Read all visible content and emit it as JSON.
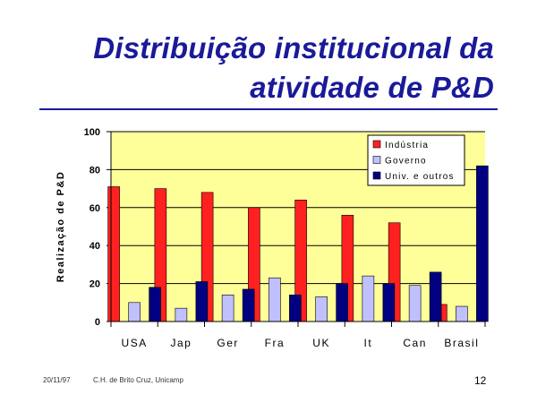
{
  "slide": {
    "title_line1": "Distribuição institucional da",
    "title_line2": "atividade de P&D",
    "footer_date": "20/11/97",
    "footer_author": "C.H. de Brito Cruz, Unicamp",
    "page_number": "12"
  },
  "colors": {
    "title": "#1a1a99",
    "plot_background": "#ffff99",
    "industria": "#ff2020",
    "governo": "#c0c0ff",
    "univ": "#000080"
  },
  "chart_data": {
    "type": "bar",
    "title": "",
    "xlabel": "",
    "ylabel": "Realização de P&D",
    "ylim": [
      0,
      100
    ],
    "yticks": [
      "0",
      "20",
      "40",
      "60",
      "80",
      "100"
    ],
    "grid": true,
    "legend_position": "top-right",
    "categories": [
      "USA",
      "Jap",
      "Ger",
      "Fra",
      "UK",
      "It",
      "Can",
      "Brasil"
    ],
    "series": [
      {
        "name": "Indústria",
        "values": [
          71,
          70,
          68,
          60,
          64,
          56,
          52,
          9
        ]
      },
      {
        "name": "Governo",
        "values": [
          10,
          7,
          14,
          23,
          13,
          24,
          19,
          8
        ]
      },
      {
        "name": "Univ. e outros",
        "values": [
          18,
          21,
          17,
          14,
          20,
          20,
          26,
          82
        ]
      }
    ]
  }
}
